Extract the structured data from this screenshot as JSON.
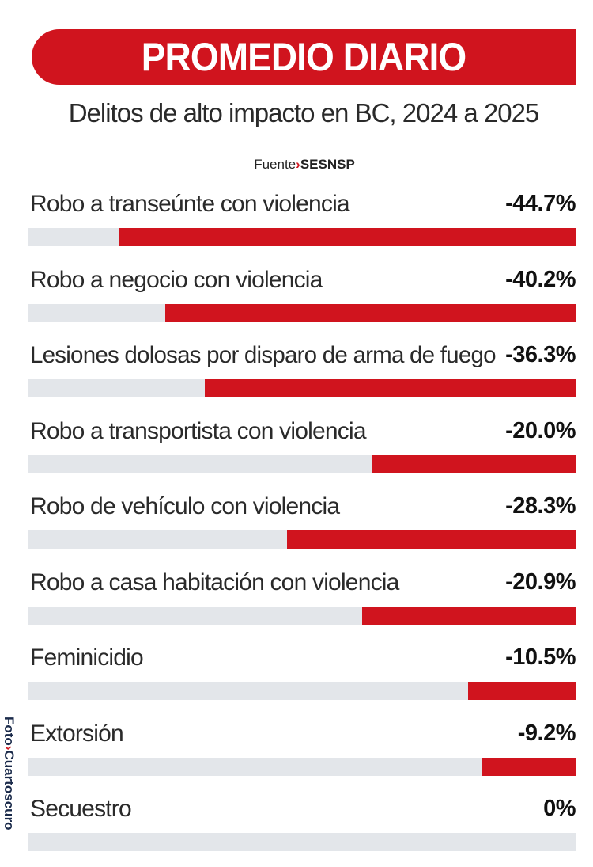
{
  "header": {
    "title": "PROMEDIO DIARIO",
    "subtitle": "Delitos de alto impacto en BC, 2024 a 2025",
    "source_prefix": "Fuente",
    "source_org": "SESNSP"
  },
  "credit": {
    "prefix": "Foto",
    "org": "Cuartoscuro"
  },
  "colors": {
    "accent": "#d0141e",
    "track": "#e3e6ea"
  },
  "chart_data": {
    "type": "bar",
    "orientation": "horizontal",
    "title": "PROMEDIO DIARIO",
    "subtitle": "Delitos de alto impacto en BC, 2024 a 2025",
    "categories": [
      "Robo a transeúnte con violencia",
      "Robo a negocio con violencia",
      "Lesiones dolosas por disparo de arma de fuego",
      "Robo a transportista con violencia",
      "Robo de vehículo con violencia",
      "Robo a casa habitación con violencia",
      "Feminicidio",
      "Extorsión",
      "Secuestro"
    ],
    "values": [
      -44.7,
      -40.2,
      -36.3,
      -20.0,
      -28.3,
      -20.9,
      -10.5,
      -9.2,
      0
    ],
    "value_labels": [
      "-44.7%",
      "-40.2%",
      "-36.3%",
      "-20.0%",
      "-28.3%",
      "-20.9%",
      "-10.5%",
      "-9.2%",
      "0%"
    ],
    "unit": "%",
    "xlim": [
      0,
      53.6
    ],
    "grid": false,
    "legend": "none"
  }
}
